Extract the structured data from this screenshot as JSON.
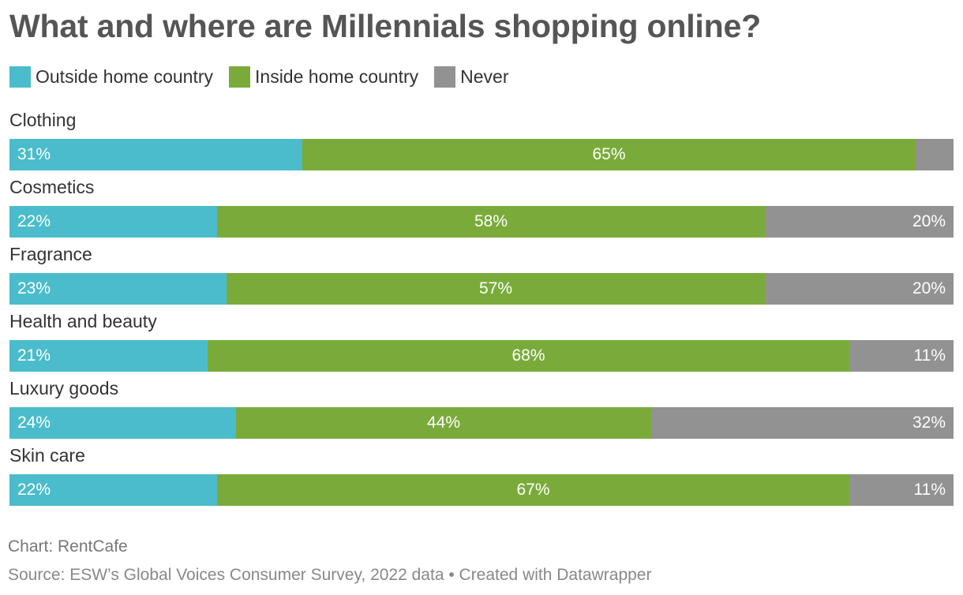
{
  "title": "What and where are Millennials shopping online?",
  "legend": [
    {
      "label": "Outside home country",
      "color": "#4bbccb"
    },
    {
      "label": "Inside home country",
      "color": "#7aab3a"
    },
    {
      "label": "Never",
      "color": "#929292"
    }
  ],
  "chart_data": {
    "type": "bar",
    "orientation": "horizontal",
    "stacked": true,
    "title": "What and where are Millennials shopping online?",
    "categories": [
      "Clothing",
      "Cosmetics",
      "Fragrance",
      "Health and beauty",
      "Luxury goods",
      "Skin care"
    ],
    "series": [
      {
        "name": "Outside home country",
        "color": "#4bbccb",
        "values": [
          31,
          22,
          23,
          21,
          24,
          22
        ],
        "labels": [
          "31%",
          "22%",
          "23%",
          "21%",
          "24%",
          "22%"
        ]
      },
      {
        "name": "Inside home country",
        "color": "#7aab3a",
        "values": [
          65,
          58,
          57,
          68,
          44,
          67
        ],
        "labels": [
          "65%",
          "58%",
          "57%",
          "68%",
          "44%",
          "67%"
        ]
      },
      {
        "name": "Never",
        "color": "#929292",
        "values": [
          4,
          20,
          20,
          11,
          32,
          11
        ],
        "labels": [
          "",
          "20%",
          "20%",
          "11%",
          "32%",
          "11%"
        ]
      }
    ],
    "xlim": [
      0,
      100
    ],
    "legend_position": "top-left",
    "grid": false
  },
  "footer": {
    "credit": "Chart: RentCafe",
    "source": "Source: ESW’s Global Voices Consumer Survey, 2022 data • Created with Datawrapper"
  }
}
